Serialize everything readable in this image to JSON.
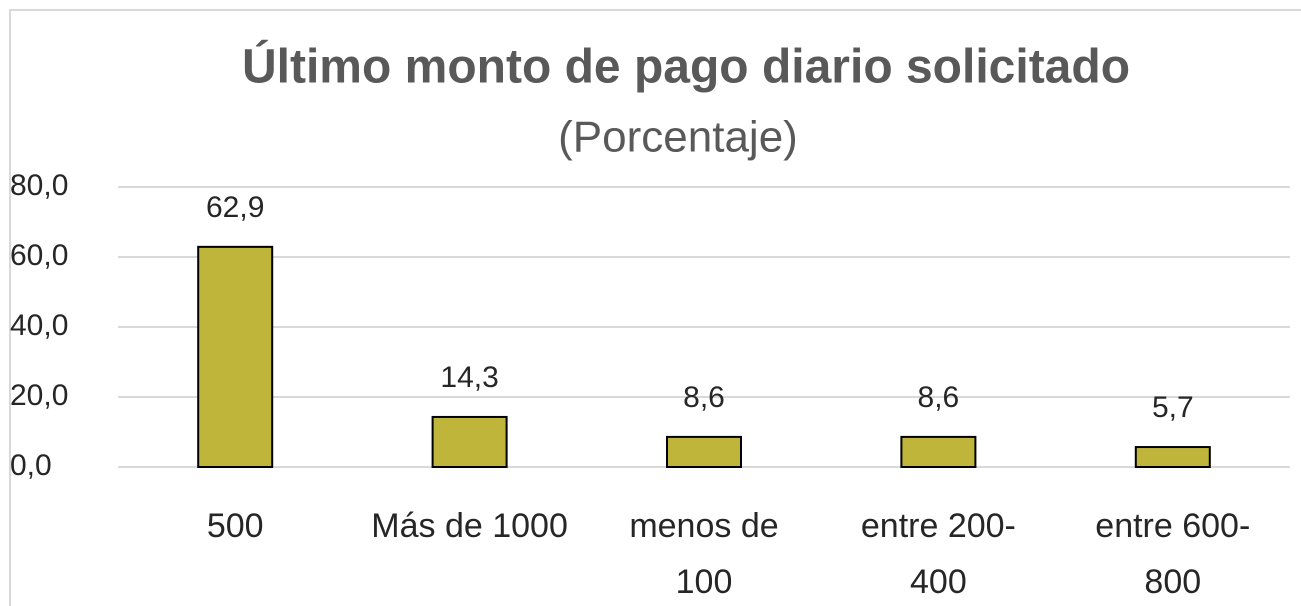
{
  "chart_data": {
    "type": "bar",
    "title": "Último monto de pago diario solicitado",
    "subtitle": "(Porcentaje)",
    "categories": [
      "500",
      "Más de 1000",
      "menos de 100",
      "entre 200-400",
      "entre 600-800"
    ],
    "values": [
      62.9,
      14.3,
      8.6,
      8.6,
      5.7
    ],
    "value_labels": [
      "62,9",
      "14,3",
      "8,6",
      "8,6",
      "5,7"
    ],
    "color": "#bfb53a",
    "ylim": [
      0,
      80
    ],
    "yticks": [
      {
        "value": 0,
        "label": "0,0"
      },
      {
        "value": 20,
        "label": "20,0"
      },
      {
        "value": 40,
        "label": "40,0"
      },
      {
        "value": 60,
        "label": "60,0"
      },
      {
        "value": 80,
        "label": "80,0"
      }
    ],
    "grid": true
  }
}
